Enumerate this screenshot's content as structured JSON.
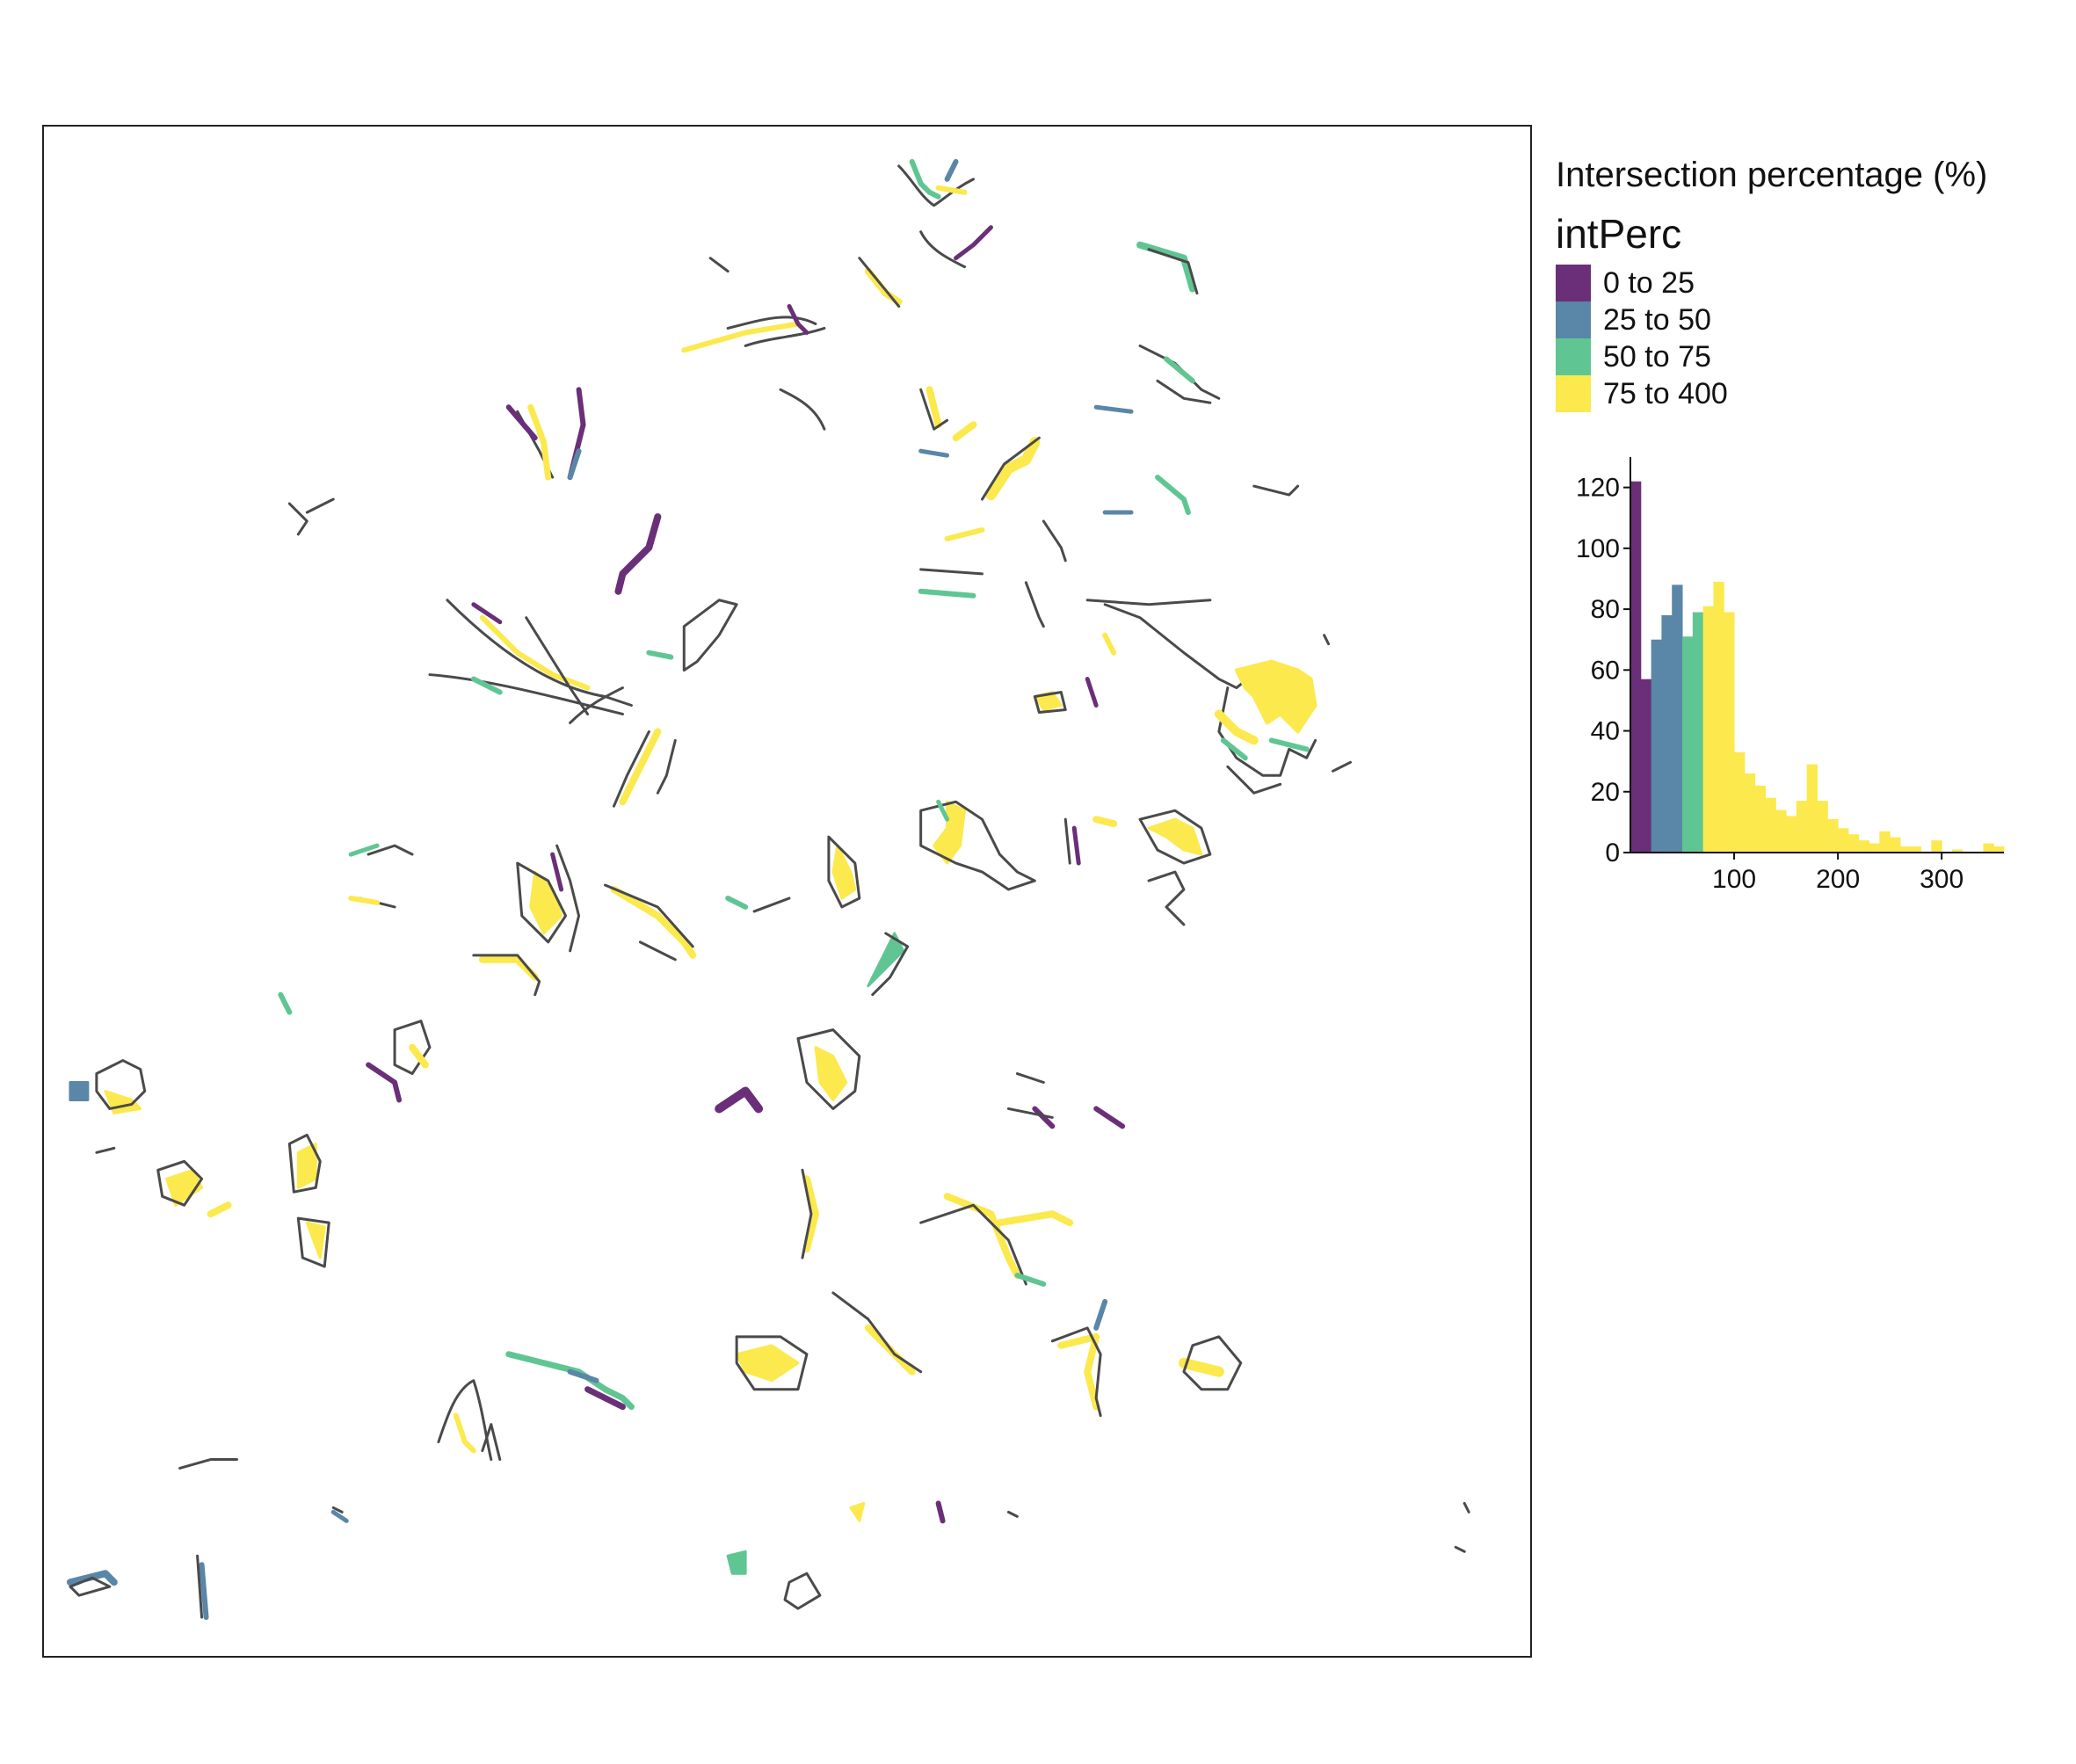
{
  "legend": {
    "title": "Intersection percentage (%)",
    "subtitle": "intPerc",
    "classes": [
      {
        "label": "0 to 25",
        "color": "#6a2f78"
      },
      {
        "label": "25 to 50",
        "color": "#5a86a8"
      },
      {
        "label": "50 to 75",
        "color": "#5fc693"
      },
      {
        "label": "75 to 400",
        "color": "#fbe94e"
      }
    ]
  },
  "chart_data": {
    "type": "bar",
    "xlim": [
      0,
      360
    ],
    "ylim": [
      0,
      130
    ],
    "x_ticks": [
      100,
      200,
      300
    ],
    "y_ticks": [
      0,
      20,
      40,
      60,
      80,
      100,
      120
    ],
    "bin_width": 10,
    "bins": [
      {
        "x0": 0,
        "x1": 10,
        "value": 122,
        "class": 0
      },
      {
        "x0": 10,
        "x1": 20,
        "value": 57,
        "class": 0
      },
      {
        "x0": 20,
        "x1": 30,
        "value": 70,
        "class": 1
      },
      {
        "x0": 30,
        "x1": 40,
        "value": 78,
        "class": 1
      },
      {
        "x0": 40,
        "x1": 50,
        "value": 88,
        "class": 1
      },
      {
        "x0": 50,
        "x1": 60,
        "value": 71,
        "class": 2
      },
      {
        "x0": 60,
        "x1": 70,
        "value": 79,
        "class": 2
      },
      {
        "x0": 70,
        "x1": 80,
        "value": 81,
        "class": 3
      },
      {
        "x0": 80,
        "x1": 90,
        "value": 89,
        "class": 3
      },
      {
        "x0": 90,
        "x1": 100,
        "value": 79,
        "class": 3
      },
      {
        "x0": 100,
        "x1": 110,
        "value": 33,
        "class": 3
      },
      {
        "x0": 110,
        "x1": 120,
        "value": 26,
        "class": 3
      },
      {
        "x0": 120,
        "x1": 130,
        "value": 22,
        "class": 3
      },
      {
        "x0": 130,
        "x1": 140,
        "value": 18,
        "class": 3
      },
      {
        "x0": 140,
        "x1": 150,
        "value": 14,
        "class": 3
      },
      {
        "x0": 150,
        "x1": 160,
        "value": 12,
        "class": 3
      },
      {
        "x0": 160,
        "x1": 170,
        "value": 17,
        "class": 3
      },
      {
        "x0": 170,
        "x1": 180,
        "value": 29,
        "class": 3
      },
      {
        "x0": 180,
        "x1": 190,
        "value": 17,
        "class": 3
      },
      {
        "x0": 190,
        "x1": 200,
        "value": 11,
        "class": 3
      },
      {
        "x0": 200,
        "x1": 210,
        "value": 8,
        "class": 3
      },
      {
        "x0": 210,
        "x1": 220,
        "value": 6,
        "class": 3
      },
      {
        "x0": 220,
        "x1": 230,
        "value": 4,
        "class": 3
      },
      {
        "x0": 230,
        "x1": 240,
        "value": 3,
        "class": 3
      },
      {
        "x0": 240,
        "x1": 250,
        "value": 7,
        "class": 3
      },
      {
        "x0": 250,
        "x1": 260,
        "value": 5,
        "class": 3
      },
      {
        "x0": 260,
        "x1": 270,
        "value": 2,
        "class": 3
      },
      {
        "x0": 270,
        "x1": 280,
        "value": 2,
        "class": 3
      },
      {
        "x0": 280,
        "x1": 290,
        "value": 0,
        "class": 3
      },
      {
        "x0": 290,
        "x1": 300,
        "value": 4,
        "class": 3
      },
      {
        "x0": 300,
        "x1": 310,
        "value": 0,
        "class": 3
      },
      {
        "x0": 310,
        "x1": 320,
        "value": 1,
        "class": 3
      },
      {
        "x0": 320,
        "x1": 330,
        "value": 0,
        "class": 3
      },
      {
        "x0": 330,
        "x1": 340,
        "value": 0,
        "class": 3
      },
      {
        "x0": 340,
        "x1": 350,
        "value": 3,
        "class": 3
      },
      {
        "x0": 350,
        "x1": 360,
        "value": 2,
        "class": 3
      }
    ]
  },
  "map": {
    "outline_color": "#4a4a4a",
    "background": "#ffffff"
  }
}
